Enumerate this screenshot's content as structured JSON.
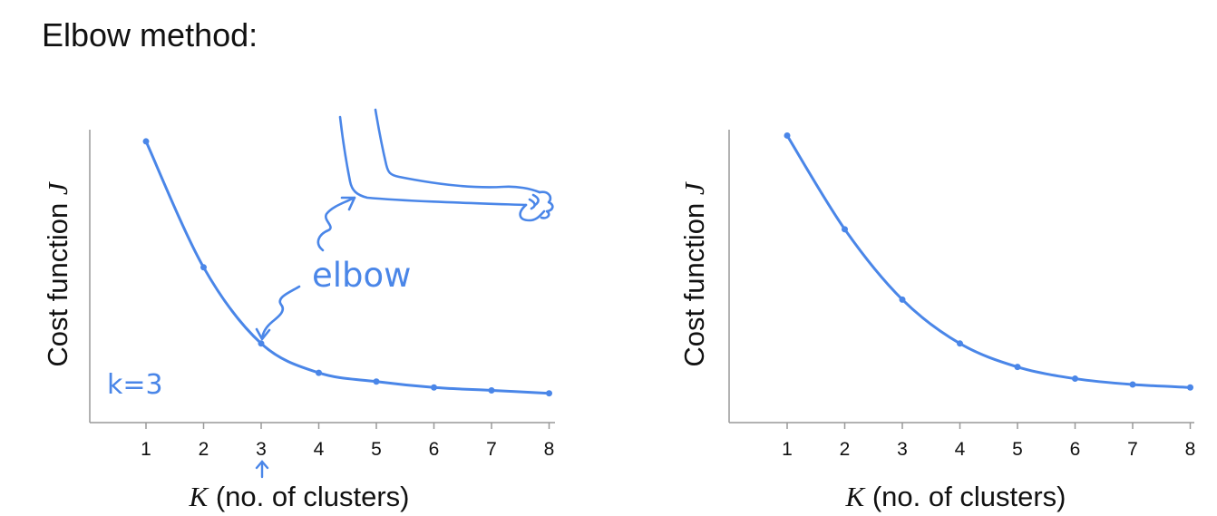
{
  "title": "Elbow method:",
  "colors": {
    "curve": "#4a86e8",
    "axis": "#999999",
    "text": "#111111"
  },
  "chart_data": [
    {
      "type": "line",
      "x": [
        1,
        2,
        3,
        4,
        5,
        6,
        7,
        8
      ],
      "y": [
        0.96,
        0.53,
        0.27,
        0.17,
        0.14,
        0.12,
        0.11,
        0.1
      ],
      "xlim": [
        0,
        8
      ],
      "ylim": [
        0,
        1
      ],
      "ylabel_text": "Cost function",
      "ylabel_symbol": "J",
      "xlabel_symbol": "K",
      "xlabel_text": "(no. of clusters)",
      "annotations": {
        "elbow_label": "elbow",
        "k_label": "k=3",
        "arrow_at": 3
      }
    },
    {
      "type": "line",
      "x": [
        1,
        2,
        3,
        4,
        5,
        6,
        7,
        8
      ],
      "y": [
        0.98,
        0.66,
        0.42,
        0.27,
        0.19,
        0.15,
        0.13,
        0.12
      ],
      "xlim": [
        0,
        8
      ],
      "ylim": [
        0,
        1
      ],
      "ylabel_text": "Cost function",
      "ylabel_symbol": "J",
      "xlabel_symbol": "K",
      "xlabel_text": "(no. of clusters)"
    }
  ]
}
